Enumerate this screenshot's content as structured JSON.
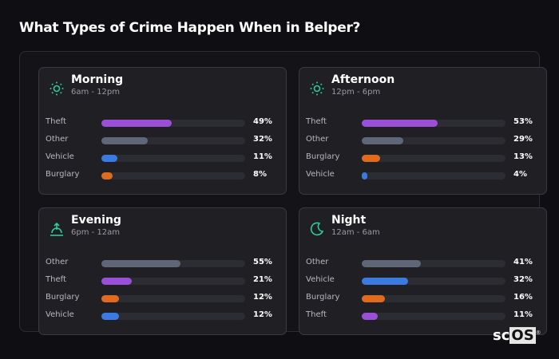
{
  "title": "What Types of Crime Happen When in Belper?",
  "colors": {
    "Theft": "#9a4fd9",
    "Other": "#5f6677",
    "Vehicle": "#3b7ae0",
    "Burglary": "#e06a1e",
    "icon": "#2ecc9a"
  },
  "cards": [
    {
      "name": "Morning",
      "time": "6am - 12pm",
      "icon": "sun-icon",
      "rows": [
        {
          "label": "Theft",
          "pct": 49,
          "text": "49%"
        },
        {
          "label": "Other",
          "pct": 32,
          "text": "32%"
        },
        {
          "label": "Vehicle",
          "pct": 11,
          "text": "11%"
        },
        {
          "label": "Burglary",
          "pct": 8,
          "text": "8%"
        }
      ]
    },
    {
      "name": "Afternoon",
      "time": "12pm - 6pm",
      "icon": "sun-icon",
      "rows": [
        {
          "label": "Theft",
          "pct": 53,
          "text": "53%"
        },
        {
          "label": "Other",
          "pct": 29,
          "text": "29%"
        },
        {
          "label": "Burglary",
          "pct": 13,
          "text": "13%"
        },
        {
          "label": "Vehicle",
          "pct": 4,
          "text": "4%"
        }
      ]
    },
    {
      "name": "Evening",
      "time": "6pm - 12am",
      "icon": "sunset-icon",
      "rows": [
        {
          "label": "Other",
          "pct": 55,
          "text": "55%"
        },
        {
          "label": "Theft",
          "pct": 21,
          "text": "21%"
        },
        {
          "label": "Burglary",
          "pct": 12,
          "text": "12%"
        },
        {
          "label": "Vehicle",
          "pct": 12,
          "text": "12%"
        }
      ]
    },
    {
      "name": "Night",
      "time": "12am - 6am",
      "icon": "moon-icon",
      "rows": [
        {
          "label": "Other",
          "pct": 41,
          "text": "41%"
        },
        {
          "label": "Vehicle",
          "pct": 32,
          "text": "32%"
        },
        {
          "label": "Burglary",
          "pct": 16,
          "text": "16%"
        },
        {
          "label": "Theft",
          "pct": 11,
          "text": "11%"
        }
      ]
    }
  ],
  "logo": "scOS"
}
